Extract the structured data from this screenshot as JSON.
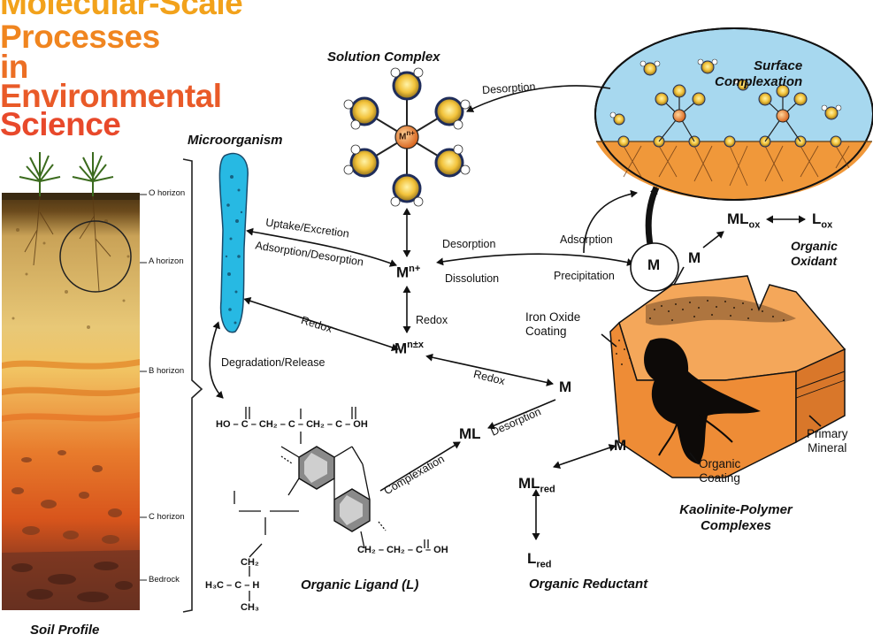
{
  "title_lines": [
    "Molecular-Scale",
    "Processes",
    "in",
    "Environmental",
    "Science"
  ],
  "headings": {
    "solution_complex": "Solution Complex",
    "surface_complexation": [
      "Surface",
      "Complexation"
    ],
    "microorganism": "Microorganism",
    "organic_oxidant": [
      "Organic",
      "Oxidant"
    ],
    "organic_ligand": "Organic Ligand (L)",
    "kaolinite": [
      "Kaolinite-Polymer",
      "Complexes"
    ],
    "organic_reductant": "Organic Reductant",
    "soil_profile": "Soil Profile"
  },
  "horizons": [
    "O horizon",
    "A horizon",
    "B horizon",
    "C horizon",
    "Bedrock"
  ],
  "process_labels": {
    "desorption_top": "Desorption",
    "uptake": "Uptake/Excretion",
    "adsorption_desorption": "Adsorption/Desorption",
    "desorption_mid": "Desorption",
    "dissolution": "Dissolution",
    "adsorption": "Adsorption",
    "precipitation": "Precipitation",
    "redox_center": "Redox",
    "redox_left": "Redox",
    "redox_lower": "Redox",
    "degradation": "Degradation/Release",
    "desorption_ml": "Desorption",
    "complexation": "Complexation"
  },
  "minerals": {
    "iron_oxide": [
      "Iron Oxide",
      "Coating"
    ],
    "organic_coating": [
      "Organic",
      "Coating"
    ],
    "primary_mineral": [
      "Primary",
      "Mineral"
    ]
  },
  "species": {
    "m_n_plus": {
      "base": "M",
      "sup": "n+"
    },
    "m_n_pm_x": {
      "base": "M",
      "sup": "n±x"
    },
    "m_center": "M",
    "m_circle": "M",
    "m_right": "M",
    "m_lower": "M",
    "ml": "ML",
    "ml_ox": {
      "base": "ML",
      "sub": "ox"
    },
    "l_ox": {
      "base": "L",
      "sub": "ox"
    },
    "ml_red": {
      "base": "ML",
      "sub": "red"
    },
    "l_red": {
      "base": "L",
      "sub": "red"
    },
    "solution_ion": {
      "base": "M",
      "sup": "n+"
    }
  },
  "formulas": {
    "chain_top": "HO – C – CH₂ – C – CH₂ – C – OH",
    "chain_right": "CH₂ – CH₂ – C – OH",
    "isopropyl": "H₃C – C – H",
    "ch3": "CH₃",
    "ch2": "CH₂"
  },
  "colors": {
    "title_top": "#f2a21b",
    "title_bottom": "#e8492b",
    "soil_o": "#3b2a14",
    "soil_a": "#d8b45c",
    "soil_b": "#e8a33a",
    "soil_c": "#d9591e",
    "bedrock": "#7a3a26",
    "microbe": "#27b9e3",
    "surface_water": "#a7d8ef",
    "surface_mineral": "#f0983a",
    "kaolinite": "#f29a43"
  }
}
